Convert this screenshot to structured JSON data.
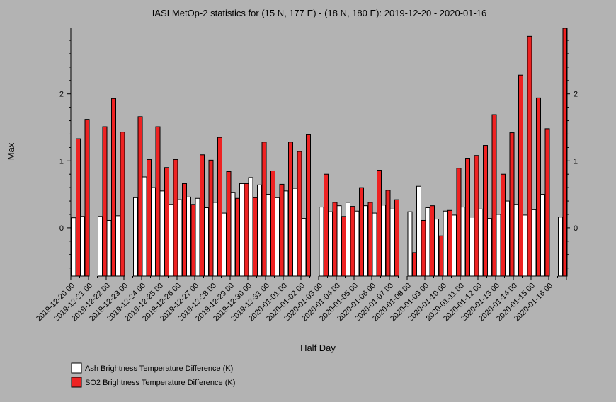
{
  "chart_data": {
    "type": "bar",
    "title": "IASI MetOp-2 statistics for (15 N, 177 E) - (18 N, 180 E): 2019-12-20 - 2020-01-16",
    "xlabel": "Half Day",
    "ylabel": "Max",
    "ylim": [
      -0.72,
      2.98
    ],
    "yticks": [
      0,
      1,
      2
    ],
    "grid": false,
    "legend_position": "bottom-left",
    "x_tick_labels": [
      "2019-12-20 00",
      "2019-12-21 00",
      "2019-12-22 00",
      "2019-12-23 00",
      "2019-12-24 00",
      "2019-12-25 00",
      "2019-12-26 00",
      "2019-12-27 00",
      "2019-12-28 00",
      "2019-12-29 00",
      "2019-12-30 00",
      "2019-12-31 00",
      "2020-01-01 00",
      "2020-01-02 00",
      "2020-01-03 00",
      "2020-01-04 00",
      "2020-01-05 00",
      "2020-01-06 00",
      "2020-01-07 00",
      "2020-01-08 00",
      "2020-01-09 00",
      "2020-01-10 00",
      "2020-01-11 00",
      "2020-01-12 00",
      "2020-01-13 00",
      "2020-01-14 00",
      "2020-01-15 00",
      "2020-01-16 00"
    ],
    "series": [
      {
        "name": "Ash Brightness Temperature Difference (K)",
        "color": "#ffffff",
        "values": [
          0.15,
          0.17,
          null,
          0.17,
          0.11,
          0.18,
          null,
          0.45,
          0.76,
          0.6,
          0.55,
          0.35,
          0.42,
          0.46,
          0.44,
          0.3,
          0.38,
          0.22,
          0.53,
          0.66,
          0.75,
          0.64,
          0.5,
          0.45,
          0.55,
          0.59,
          0.14,
          null,
          0.31,
          0.24,
          0.33,
          0.38,
          0.25,
          0.33,
          0.22,
          0.34,
          0.28,
          null,
          0.24,
          0.62,
          0.3,
          0.13,
          0.25,
          0.19,
          0.31,
          0.16,
          0.28,
          0.14,
          0.2,
          0.4,
          0.35,
          0.19,
          0.27,
          0.5,
          null,
          0.16
        ]
      },
      {
        "name": "SO2 Brightness Temperature Difference (K)",
        "color": "#ee2222",
        "values": [
          1.33,
          1.62,
          null,
          1.51,
          1.93,
          1.43,
          null,
          1.66,
          1.02,
          1.51,
          0.9,
          1.02,
          0.66,
          0.35,
          1.09,
          1.01,
          1.35,
          0.84,
          0.44,
          0.66,
          0.45,
          1.28,
          0.85,
          0.65,
          1.28,
          1.14,
          1.39,
          null,
          0.8,
          0.38,
          0.17,
          0.32,
          0.6,
          0.38,
          0.86,
          0.56,
          0.42,
          null,
          -0.37,
          0.11,
          0.33,
          -0.12,
          0.26,
          0.89,
          1.04,
          1.08,
          1.23,
          1.69,
          0.8,
          1.42,
          2.28,
          2.86,
          1.94,
          1.48,
          null,
          2.98
        ]
      }
    ]
  }
}
